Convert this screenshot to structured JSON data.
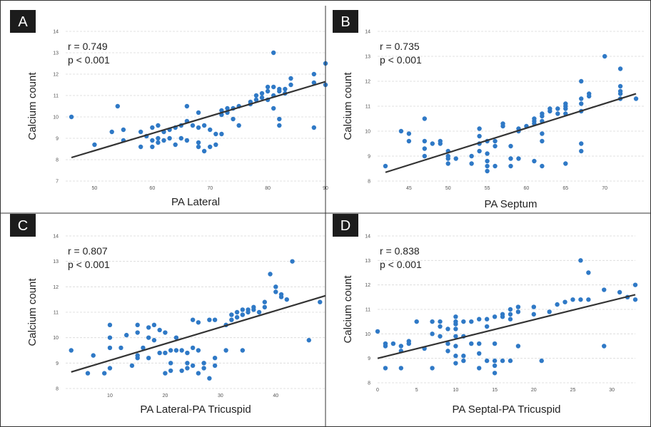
{
  "chart_data": [
    {
      "type": "scatter",
      "panel": "A",
      "xlabel": "PA Lateral",
      "ylabel": "Calcium count",
      "stats": [
        "r = 0.749",
        "p < 0.001"
      ],
      "xlim": [
        45,
        90
      ],
      "ylim": [
        7,
        14
      ],
      "xticks": [
        50,
        60,
        70,
        80,
        90
      ],
      "yticks": [
        7,
        8,
        9,
        10,
        11,
        12,
        13,
        14
      ],
      "grid": true,
      "trendline": [
        [
          46,
          8.1
        ],
        [
          90,
          11.65
        ]
      ],
      "points": [
        [
          46,
          10
        ],
        [
          50,
          8.7
        ],
        [
          53,
          9.3
        ],
        [
          54,
          10.5
        ],
        [
          55,
          8.9
        ],
        [
          55,
          9.4
        ],
        [
          58,
          9.3
        ],
        [
          58,
          8.6
        ],
        [
          59,
          9.1
        ],
        [
          60,
          8.6
        ],
        [
          60,
          9.5
        ],
        [
          60,
          8.9
        ],
        [
          61,
          9.6
        ],
        [
          61,
          8.8
        ],
        [
          61,
          9.0
        ],
        [
          62,
          9.3
        ],
        [
          62,
          8.9
        ],
        [
          63,
          9.4
        ],
        [
          63,
          9.0
        ],
        [
          64,
          8.7
        ],
        [
          64,
          9.5
        ],
        [
          65,
          9.6
        ],
        [
          65,
          9.0
        ],
        [
          66,
          10.5
        ],
        [
          66,
          9.8
        ],
        [
          66,
          8.9
        ],
        [
          67,
          9.6
        ],
        [
          68,
          10.2
        ],
        [
          68,
          9.5
        ],
        [
          68,
          8.8
        ],
        [
          68,
          8.6
        ],
        [
          69,
          8.4
        ],
        [
          69,
          9.6
        ],
        [
          70,
          9.4
        ],
        [
          70,
          8.6
        ],
        [
          71,
          9.2
        ],
        [
          71,
          8.7
        ],
        [
          72,
          10.1
        ],
        [
          72,
          10.3
        ],
        [
          72,
          9.2
        ],
        [
          73,
          10.2
        ],
        [
          73,
          10.4
        ],
        [
          74,
          10.4
        ],
        [
          74,
          9.9
        ],
        [
          75,
          10.5
        ],
        [
          75,
          9.6
        ],
        [
          77,
          10.6
        ],
        [
          77,
          10.7
        ],
        [
          78,
          10.8
        ],
        [
          78,
          11.0
        ],
        [
          79,
          11.1
        ],
        [
          79,
          10.9
        ],
        [
          80,
          11.4
        ],
        [
          80,
          11.2
        ],
        [
          80,
          10.8
        ],
        [
          81,
          13.0
        ],
        [
          81,
          11.4
        ],
        [
          81,
          11.0
        ],
        [
          81,
          10.4
        ],
        [
          82,
          11.3
        ],
        [
          82,
          11.2
        ],
        [
          82,
          9.9
        ],
        [
          82,
          9.6
        ],
        [
          83,
          11.3
        ],
        [
          83,
          11.1
        ],
        [
          84,
          11.8
        ],
        [
          84,
          11.5
        ],
        [
          88,
          12.0
        ],
        [
          88,
          11.6
        ],
        [
          88,
          9.5
        ],
        [
          90,
          12.5
        ],
        [
          90,
          11.5
        ]
      ]
    },
    {
      "type": "scatter",
      "panel": "B",
      "xlabel": "PA Septum",
      "ylabel": "Calcium count",
      "stats": [
        "r = 0.735",
        "p < 0.001"
      ],
      "xlim": [
        41,
        75
      ],
      "ylim": [
        8,
        14
      ],
      "xticks": [
        45,
        50,
        55,
        60,
        65,
        70
      ],
      "yticks": [
        8,
        9,
        10,
        11,
        12,
        13,
        14
      ],
      "grid": true,
      "trendline": [
        [
          42,
          8.35
        ],
        [
          74,
          11.5
        ]
      ],
      "points": [
        [
          42,
          8.6
        ],
        [
          44,
          10.0
        ],
        [
          45,
          9.6
        ],
        [
          45,
          9.9
        ],
        [
          47,
          10.5
        ],
        [
          47,
          9.6
        ],
        [
          47,
          9.3
        ],
        [
          47,
          9.0
        ],
        [
          48,
          9.5
        ],
        [
          49,
          9.6
        ],
        [
          49,
          9.5
        ],
        [
          50,
          9.2
        ],
        [
          50,
          9.0
        ],
        [
          50,
          8.9
        ],
        [
          50,
          8.7
        ],
        [
          51,
          8.9
        ],
        [
          53,
          9.0
        ],
        [
          53,
          8.7
        ],
        [
          54,
          10.1
        ],
        [
          54,
          9.8
        ],
        [
          54,
          9.5
        ],
        [
          54,
          9.2
        ],
        [
          55,
          9.6
        ],
        [
          55,
          9.1
        ],
        [
          55,
          8.8
        ],
        [
          55,
          8.6
        ],
        [
          55,
          8.4
        ],
        [
          56,
          9.6
        ],
        [
          56,
          9.4
        ],
        [
          56,
          8.6
        ],
        [
          57,
          10.3
        ],
        [
          57,
          10.2
        ],
        [
          58,
          9.4
        ],
        [
          58,
          8.9
        ],
        [
          58,
          8.6
        ],
        [
          59,
          10.1
        ],
        [
          59,
          10.0
        ],
        [
          59,
          8.9
        ],
        [
          60,
          10.2
        ],
        [
          61,
          10.5
        ],
        [
          61,
          10.4
        ],
        [
          61,
          10.3
        ],
        [
          61,
          8.8
        ],
        [
          62,
          10.7
        ],
        [
          62,
          10.6
        ],
        [
          62,
          10.4
        ],
        [
          62,
          9.9
        ],
        [
          62,
          9.6
        ],
        [
          62,
          8.6
        ],
        [
          63,
          10.9
        ],
        [
          63,
          10.8
        ],
        [
          64,
          10.9
        ],
        [
          64,
          10.7
        ],
        [
          65,
          11.1
        ],
        [
          65,
          11.0
        ],
        [
          65,
          10.9
        ],
        [
          65,
          10.7
        ],
        [
          65,
          8.7
        ],
        [
          67,
          12.0
        ],
        [
          67,
          11.3
        ],
        [
          67,
          11.1
        ],
        [
          67,
          10.8
        ],
        [
          67,
          9.5
        ],
        [
          67,
          9.2
        ],
        [
          68,
          11.5
        ],
        [
          68,
          11.4
        ],
        [
          70,
          13.0
        ],
        [
          72,
          12.5
        ],
        [
          72,
          11.8
        ],
        [
          72,
          11.6
        ],
        [
          72,
          11.5
        ],
        [
          72,
          11.3
        ],
        [
          74,
          11.3
        ]
      ]
    },
    {
      "type": "scatter",
      "panel": "C",
      "xlabel": "PA Lateral-PA Tricuspid",
      "ylabel": "Calcium count",
      "stats": [
        "r = 0.807",
        "p < 0.001"
      ],
      "xlim": [
        2,
        49
      ],
      "ylim": [
        8,
        14
      ],
      "xticks": [
        10,
        20,
        30,
        40
      ],
      "yticks": [
        8,
        9,
        10,
        11,
        12,
        13,
        14
      ],
      "grid": true,
      "trendline": [
        [
          3,
          8.65
        ],
        [
          49,
          11.65
        ]
      ],
      "points": [
        [
          3,
          9.5
        ],
        [
          6,
          8.6
        ],
        [
          7,
          9.3
        ],
        [
          9,
          8.6
        ],
        [
          10,
          10.5
        ],
        [
          10,
          10.0
        ],
        [
          10,
          9.6
        ],
        [
          10,
          8.8
        ],
        [
          12,
          9.6
        ],
        [
          13,
          10.1
        ],
        [
          14,
          8.9
        ],
        [
          15,
          10.5
        ],
        [
          15,
          10.2
        ],
        [
          15,
          9.3
        ],
        [
          15,
          9.2
        ],
        [
          16,
          9.6
        ],
        [
          17,
          9.2
        ],
        [
          17,
          10.0
        ],
        [
          17,
          10.4
        ],
        [
          18,
          10.5
        ],
        [
          18,
          9.9
        ],
        [
          19,
          10.3
        ],
        [
          19,
          9.4
        ],
        [
          20,
          10.2
        ],
        [
          20,
          9.4
        ],
        [
          20,
          8.6
        ],
        [
          21,
          9.5
        ],
        [
          21,
          9.0
        ],
        [
          21,
          8.7
        ],
        [
          22,
          9.5
        ],
        [
          22,
          10.0
        ],
        [
          23,
          9.5
        ],
        [
          23,
          8.7
        ],
        [
          24,
          9.4
        ],
        [
          24,
          9.0
        ],
        [
          24,
          8.8
        ],
        [
          25,
          10.7
        ],
        [
          25,
          9.6
        ],
        [
          25,
          8.9
        ],
        [
          26,
          10.6
        ],
        [
          26,
          9.5
        ],
        [
          26,
          8.6
        ],
        [
          27,
          9.0
        ],
        [
          27,
          8.8
        ],
        [
          28,
          10.7
        ],
        [
          28,
          8.4
        ],
        [
          29,
          10.7
        ],
        [
          29,
          9.2
        ],
        [
          29,
          8.9
        ],
        [
          31,
          10.5
        ],
        [
          31,
          9.5
        ],
        [
          32,
          10.9
        ],
        [
          32,
          10.7
        ],
        [
          33,
          11.0
        ],
        [
          33,
          10.8
        ],
        [
          34,
          10.9
        ],
        [
          34,
          11.1
        ],
        [
          34,
          9.5
        ],
        [
          35,
          11.1
        ],
        [
          35,
          11.0
        ],
        [
          36,
          11.1
        ],
        [
          36,
          11.2
        ],
        [
          37,
          11.0
        ],
        [
          38,
          11.2
        ],
        [
          38,
          11.4
        ],
        [
          39,
          12.5
        ],
        [
          40,
          11.8
        ],
        [
          40,
          12.0
        ],
        [
          41,
          11.6
        ],
        [
          41,
          11.7
        ],
        [
          42,
          11.5
        ],
        [
          43,
          13.0
        ],
        [
          46,
          9.9
        ],
        [
          48,
          11.4
        ]
      ]
    },
    {
      "type": "scatter",
      "panel": "D",
      "xlabel": "PA Septal-PA Tricuspid",
      "ylabel": "Calcium count",
      "stats": [
        "r = 0.838",
        "p < 0.001"
      ],
      "xlim": [
        0,
        33
      ],
      "ylim": [
        8,
        14
      ],
      "xticks": [
        0,
        5,
        10,
        15,
        20,
        25,
        30
      ],
      "yticks": [
        8,
        9,
        10,
        11,
        12,
        13,
        14
      ],
      "grid": true,
      "trendline": [
        [
          0,
          9.0
        ],
        [
          33,
          11.6
        ]
      ],
      "points": [
        [
          0,
          10.1
        ],
        [
          1,
          9.6
        ],
        [
          1,
          9.5
        ],
        [
          1,
          8.6
        ],
        [
          2,
          9.6
        ],
        [
          3,
          9.5
        ],
        [
          3,
          9.3
        ],
        [
          3,
          8.6
        ],
        [
          4,
          9.7
        ],
        [
          4,
          9.6
        ],
        [
          5,
          10.5
        ],
        [
          6,
          9.4
        ],
        [
          7,
          10.5
        ],
        [
          7,
          10.0
        ],
        [
          7,
          8.6
        ],
        [
          8,
          10.5
        ],
        [
          8,
          10.3
        ],
        [
          8,
          9.9
        ],
        [
          9,
          10.2
        ],
        [
          9,
          9.6
        ],
        [
          9,
          9.3
        ],
        [
          10,
          10.7
        ],
        [
          10,
          10.5
        ],
        [
          10,
          10.4
        ],
        [
          10,
          10.2
        ],
        [
          10,
          9.9
        ],
        [
          10,
          9.5
        ],
        [
          10,
          9.1
        ],
        [
          10,
          8.8
        ],
        [
          11,
          10.5
        ],
        [
          11,
          9.9
        ],
        [
          11,
          9.1
        ],
        [
          11,
          8.9
        ],
        [
          12,
          10.5
        ],
        [
          12,
          9.6
        ],
        [
          13,
          10.6
        ],
        [
          13,
          9.6
        ],
        [
          13,
          9.2
        ],
        [
          13,
          8.6
        ],
        [
          14,
          10.6
        ],
        [
          14,
          10.3
        ],
        [
          14,
          8.9
        ],
        [
          15,
          10.7
        ],
        [
          15,
          9.6
        ],
        [
          15,
          8.9
        ],
        [
          15,
          8.7
        ],
        [
          15,
          8.4
        ],
        [
          16,
          10.8
        ],
        [
          16,
          10.7
        ],
        [
          16,
          8.9
        ],
        [
          17,
          11.0
        ],
        [
          17,
          10.8
        ],
        [
          17,
          10.6
        ],
        [
          17,
          8.9
        ],
        [
          18,
          11.1
        ],
        [
          18,
          10.9
        ],
        [
          18,
          9.5
        ],
        [
          20,
          11.1
        ],
        [
          20,
          10.8
        ],
        [
          21,
          8.9
        ],
        [
          22,
          10.9
        ],
        [
          23,
          11.2
        ],
        [
          24,
          11.3
        ],
        [
          25,
          11.4
        ],
        [
          26,
          13.0
        ],
        [
          26,
          11.4
        ],
        [
          27,
          12.5
        ],
        [
          27,
          11.4
        ],
        [
          29,
          11.8
        ],
        [
          29,
          9.5
        ],
        [
          31,
          11.7
        ],
        [
          32,
          11.5
        ],
        [
          33,
          12.0
        ],
        [
          33,
          11.4
        ]
      ]
    }
  ]
}
